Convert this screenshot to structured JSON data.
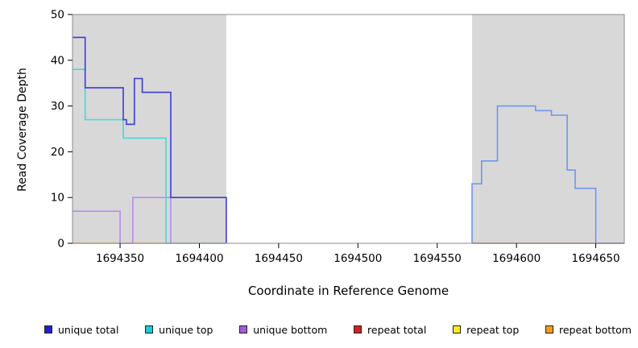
{
  "chart_data": {
    "type": "line",
    "subtype": "step-coverage-plot",
    "title": "",
    "xlabel": "Coordinate in Reference Genome",
    "ylabel": "Read Coverage Depth",
    "xlim": [
      1694320,
      1694668
    ],
    "ylim": [
      0,
      50
    ],
    "x_ticks": [
      1694350,
      1694400,
      1694450,
      1694500,
      1694550,
      1694600,
      1694650
    ],
    "y_ticks": [
      0,
      10,
      20,
      30,
      40,
      50
    ],
    "grid": false,
    "legend_position": "bottom",
    "colors": {
      "shaded_region": "#d8d8d8",
      "plot_border": "#8c8c8c",
      "axis": "#000000"
    },
    "shaded_regions": [
      {
        "name": "left-repeat-region",
        "x0": 1694320,
        "x1": 1694417
      },
      {
        "name": "right-repeat-region",
        "x0": 1694572,
        "x1": 1694668
      }
    ],
    "series": [
      {
        "name": "repeat bottom",
        "color": "#ff9d21",
        "step_points": [
          [
            1694320,
            0
          ],
          [
            1694417,
            0
          ]
        ]
      },
      {
        "name": "repeat total",
        "color": "#d04040",
        "step_points": [
          [
            1694572,
            0
          ],
          [
            1694668,
            0
          ]
        ]
      },
      {
        "name": "unique bottom",
        "color": "#b78ce8",
        "step_points": [
          [
            1694320,
            7
          ],
          [
            1694350,
            0
          ],
          [
            1694358,
            10
          ],
          [
            1694382,
            0
          ]
        ]
      },
      {
        "name": "unique top",
        "color": "#46d8d8",
        "step_points": [
          [
            1694320,
            38
          ],
          [
            1694328,
            27
          ],
          [
            1694352,
            23
          ],
          [
            1694379,
            0
          ],
          [
            1694417,
            0
          ]
        ]
      },
      {
        "name": "unique total (left region)",
        "color": "#3c3cd9",
        "step_points": [
          [
            1694320,
            45
          ],
          [
            1694328,
            34
          ],
          [
            1694352,
            27
          ],
          [
            1694354,
            26
          ],
          [
            1694359,
            36
          ],
          [
            1694364,
            33
          ],
          [
            1694382,
            10
          ],
          [
            1694417,
            0
          ]
        ]
      },
      {
        "name": "unique total (right region)",
        "color": "#6f96ef",
        "step_points": [
          [
            1694572,
            0
          ],
          [
            1694572,
            13
          ],
          [
            1694578,
            18
          ],
          [
            1694588,
            30
          ],
          [
            1694612,
            29
          ],
          [
            1694622,
            28
          ],
          [
            1694632,
            16
          ],
          [
            1694637,
            12
          ],
          [
            1694650,
            0
          ],
          [
            1694668,
            0
          ]
        ]
      }
    ],
    "legend": [
      {
        "label": "unique total",
        "color": "#2121cc"
      },
      {
        "label": "unique top",
        "color": "#19cdd3"
      },
      {
        "label": "unique bottom",
        "color": "#9e5fd6"
      },
      {
        "label": "repeat total",
        "color": "#cc2222"
      },
      {
        "label": "repeat top",
        "color": "#f2ef1d"
      },
      {
        "label": "repeat bottom",
        "color": "#f59c1b"
      }
    ]
  }
}
